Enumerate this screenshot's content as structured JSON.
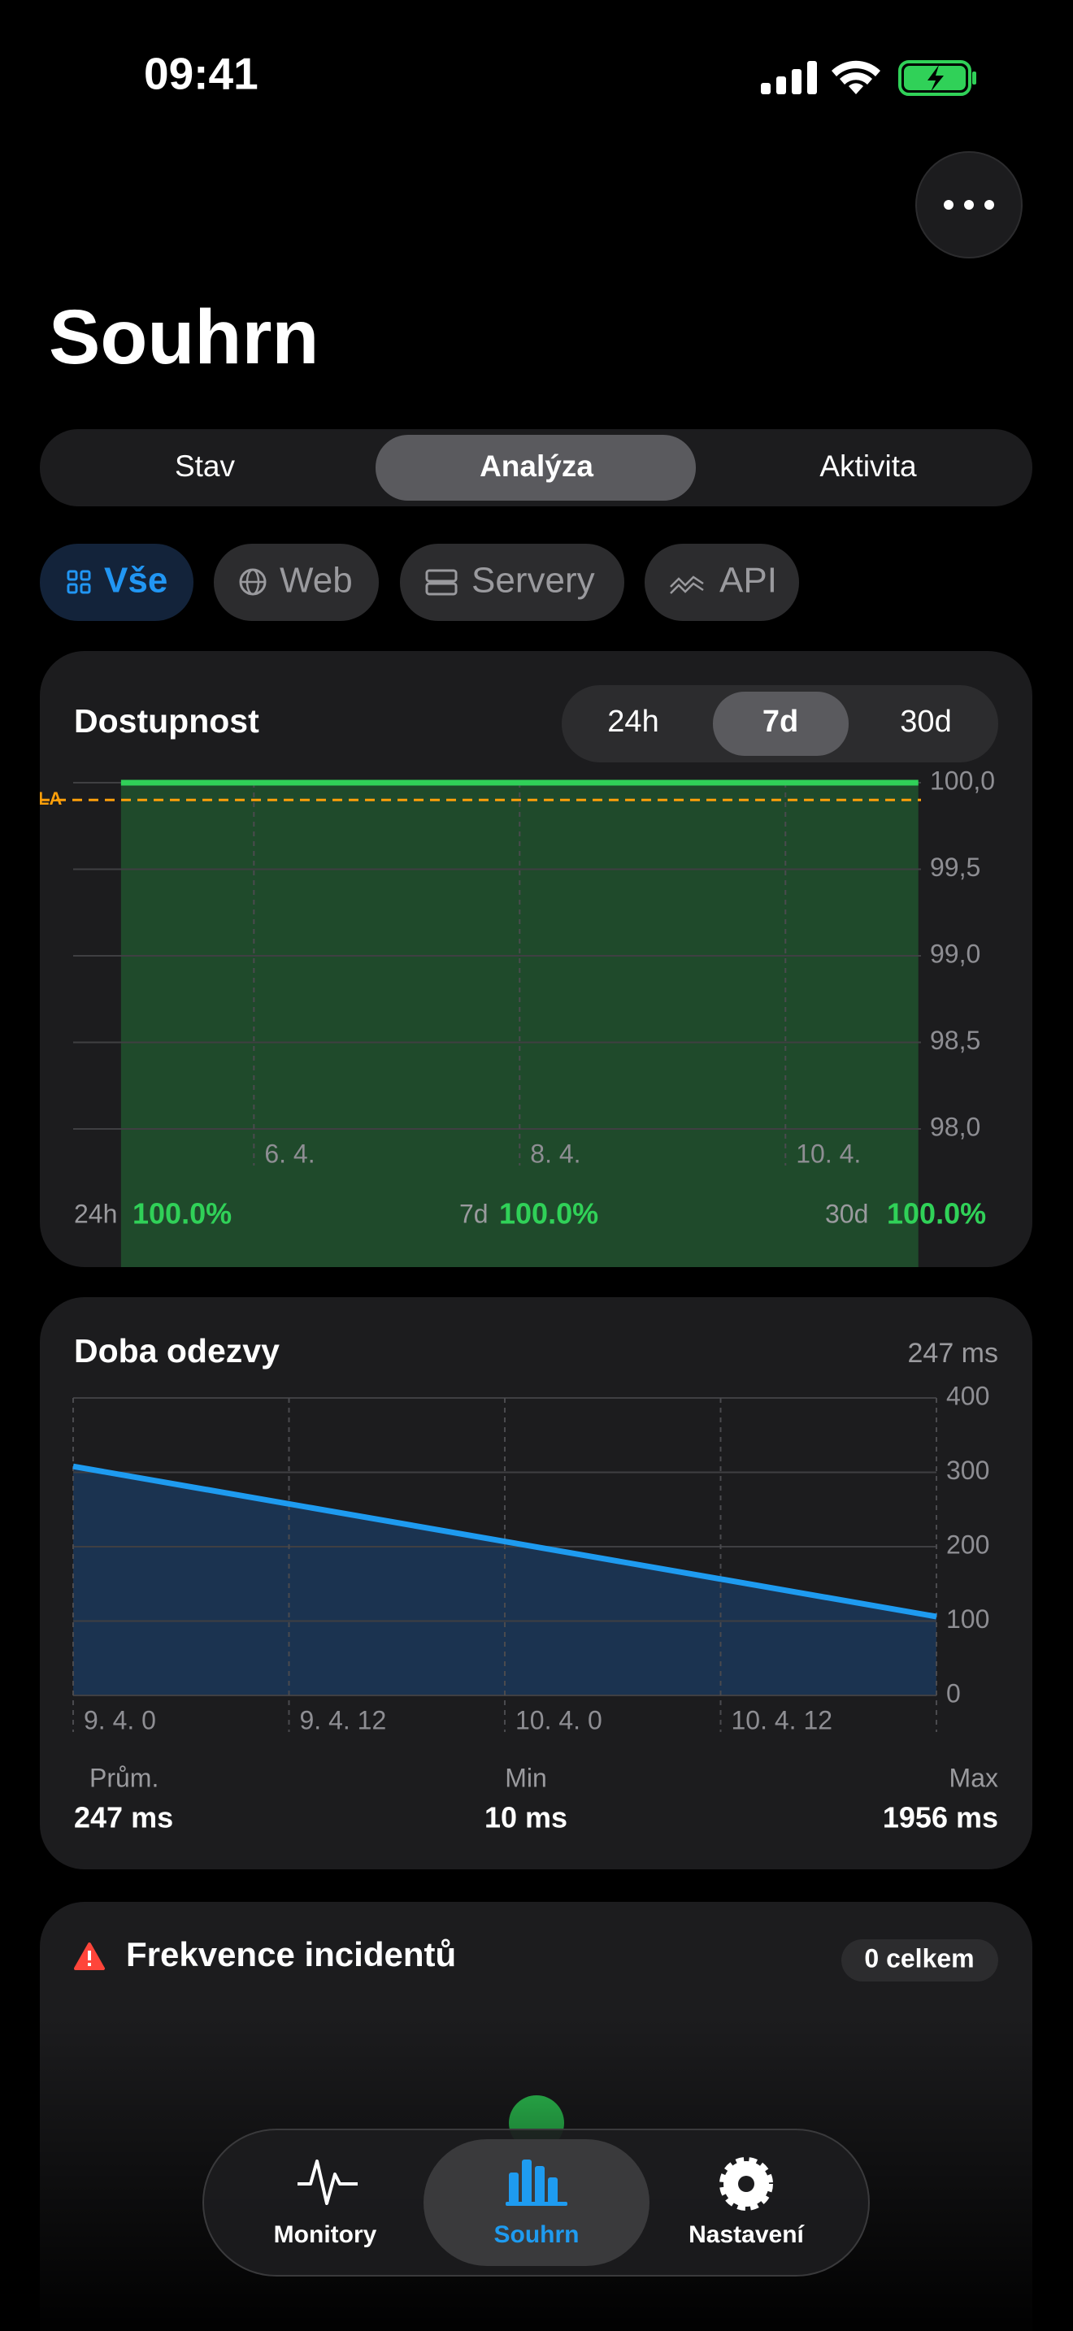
{
  "status_bar": {
    "time": "09:41"
  },
  "header": {
    "title": "Souhrn"
  },
  "segments": {
    "items": [
      "Stav",
      "Analýza",
      "Aktivita"
    ],
    "selected": 1
  },
  "filters": {
    "items": [
      "Vše",
      "Web",
      "Servery",
      "API"
    ],
    "selected": 0
  },
  "availability": {
    "title": "Dostupnost",
    "periods": [
      "24h",
      "7d",
      "30d"
    ],
    "selected_period": 1,
    "chart_data": {
      "type": "area",
      "x": [
        5,
        11
      ],
      "values": [
        100,
        100
      ],
      "color": "#30d158",
      "fill": "#1f4a2b",
      "xlim": [
        4.64,
        11.02
      ],
      "ylim": [
        98,
        100
      ],
      "xticks": [
        {
          "value": 6,
          "label": "6. 4."
        },
        {
          "value": 8,
          "label": "8. 4."
        },
        {
          "value": 10,
          "label": "10. 4."
        }
      ],
      "yticks": [
        {
          "value": 100,
          "label": "100,0"
        },
        {
          "value": 99.5,
          "label": "99,5"
        },
        {
          "value": 99,
          "label": "99,0"
        },
        {
          "value": 98.5,
          "label": "98,5"
        },
        {
          "value": 98,
          "label": "98,0"
        }
      ],
      "grid": true,
      "annotations": [
        {
          "label": "LA",
          "value": 99.9,
          "color": "#ff9f0a"
        }
      ]
    },
    "stats": [
      {
        "label": "24h",
        "value": "100.0%"
      },
      {
        "label": "7d",
        "value": "100.0%"
      },
      {
        "label": "30d",
        "value": "100.0%"
      }
    ]
  },
  "response": {
    "title": "Doba odezvy",
    "current": "247 ms",
    "chart_data": {
      "type": "area",
      "x": [
        0,
        48
      ],
      "values": [
        308,
        106
      ],
      "color": "#1e9bf0",
      "fill": "#1b3350",
      "xlim": [
        0,
        48
      ],
      "ylim": [
        0,
        400
      ],
      "xticks": [
        {
          "value": 0,
          "label": "9. 4. 0"
        },
        {
          "value": 12,
          "label": "9. 4. 12"
        },
        {
          "value": 24,
          "label": "10. 4. 0"
        },
        {
          "value": 36,
          "label": "10. 4. 12"
        }
      ],
      "yticks": [
        0,
        100,
        200,
        300,
        400
      ],
      "grid": true
    },
    "stats": [
      {
        "label": "Prům.",
        "value": "247 ms"
      },
      {
        "label": "Min",
        "value": "10 ms"
      },
      {
        "label": "Max",
        "value": "1956 ms"
      }
    ]
  },
  "incidents": {
    "title": "Frekvence incidentů",
    "badge": "0 celkem"
  },
  "tab_bar": {
    "items": [
      "Monitory",
      "Souhrn",
      "Nastavení"
    ],
    "selected": 1
  }
}
